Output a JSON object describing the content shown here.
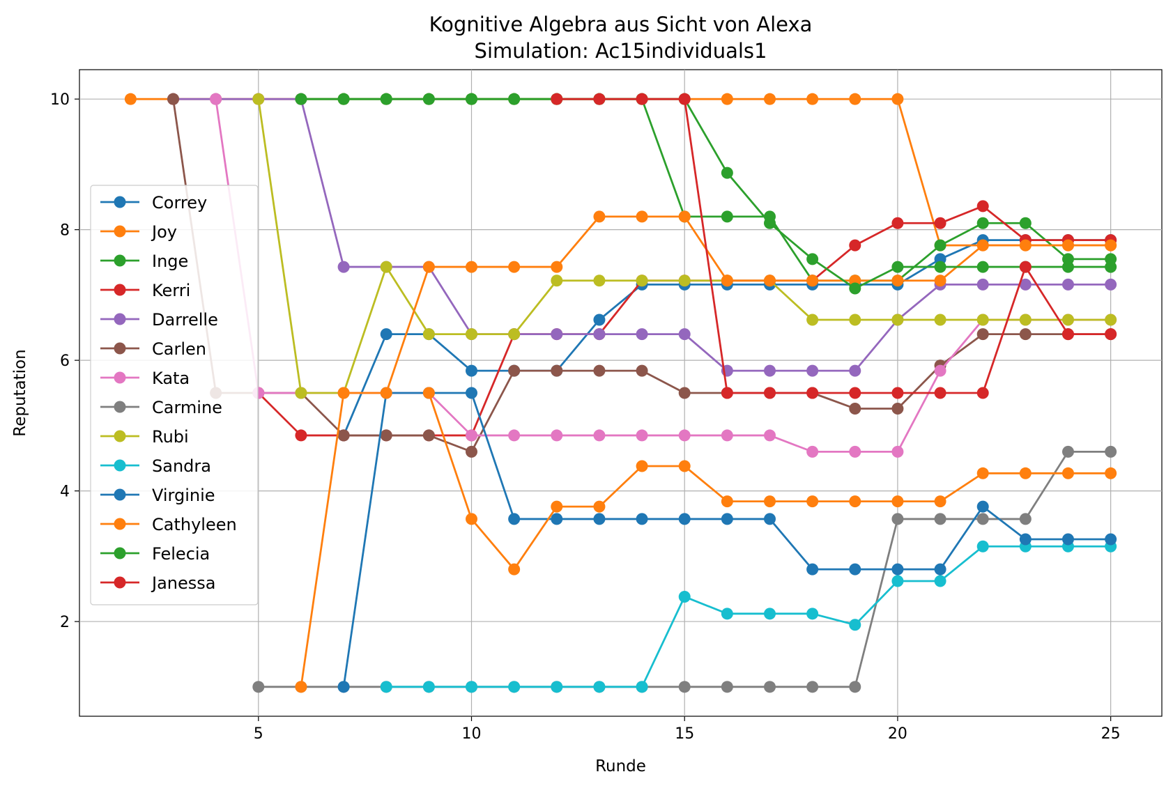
{
  "chart_data": {
    "type": "line",
    "title": "Kognitive Algebra aus Sicht von Alexa",
    "subtitle": "Simulation: Ac15individuals1",
    "xlabel": "Runde",
    "ylabel": "Reputation",
    "xlim": [
      0.8,
      26.2
    ],
    "ylim": [
      0.55,
      10.45
    ],
    "xticks": [
      5,
      10,
      15,
      20,
      25
    ],
    "yticks": [
      2,
      4,
      6,
      8,
      10
    ],
    "grid": true,
    "legend_position": "center-left",
    "series": [
      {
        "name": "Correy",
        "color": "#1f77b4",
        "x": [
          7,
          8,
          9,
          10,
          11,
          12,
          13,
          14,
          15,
          16,
          17,
          18,
          19,
          20,
          21,
          22,
          23,
          24,
          25
        ],
        "y": [
          4.85,
          6.4,
          6.4,
          5.84,
          5.84,
          5.84,
          6.62,
          7.16,
          7.16,
          7.16,
          7.16,
          7.16,
          7.16,
          7.16,
          7.55,
          7.84,
          7.84,
          7.84,
          7.84
        ]
      },
      {
        "name": "Joy",
        "color": "#ff7f0e",
        "x": [
          2,
          3,
          4,
          5,
          6,
          7,
          8,
          9,
          10,
          11,
          12,
          13,
          14,
          15,
          16,
          17,
          18,
          19,
          20,
          21,
          22,
          23,
          24,
          25
        ],
        "y": [
          10,
          10,
          10,
          10,
          10,
          10,
          10,
          10,
          10,
          10,
          10,
          10,
          10,
          10,
          10,
          10,
          10,
          10,
          10,
          7.76,
          7.76,
          7.76,
          7.76,
          7.76
        ]
      },
      {
        "name": "Inge",
        "color": "#2ca02c",
        "x": [
          6,
          7,
          8,
          9,
          10,
          11,
          12,
          13,
          14,
          15,
          16,
          17,
          18,
          19,
          20,
          21,
          22,
          23,
          24,
          25
        ],
        "y": [
          10,
          10,
          10,
          10,
          10,
          10,
          10,
          10,
          10,
          8.2,
          8.2,
          8.2,
          7.22,
          7.22,
          7.22,
          7.76,
          8.1,
          8.1,
          7.55,
          7.55
        ]
      },
      {
        "name": "Kerri",
        "color": "#d62728",
        "x": [
          5,
          6,
          7,
          8,
          9,
          10,
          11,
          12,
          13,
          14,
          15,
          16,
          17,
          18,
          19,
          20,
          21,
          22,
          23,
          24,
          25
        ],
        "y": [
          5.5,
          4.85,
          4.85,
          4.85,
          4.85,
          4.85,
          6.4,
          6.4,
          6.4,
          7.22,
          7.22,
          7.22,
          7.22,
          7.22,
          7.76,
          8.1,
          8.1,
          8.36,
          7.84,
          7.84,
          7.84
        ]
      },
      {
        "name": "Darrelle",
        "color": "#9467bd",
        "x": [
          3,
          4,
          5,
          6,
          7,
          8,
          9,
          10,
          11,
          12,
          13,
          14,
          15,
          16,
          17,
          18,
          19,
          20,
          21,
          22,
          23,
          24,
          25
        ],
        "y": [
          10,
          10,
          10,
          10,
          7.43,
          7.43,
          7.43,
          6.4,
          6.4,
          6.4,
          6.4,
          6.4,
          6.4,
          5.84,
          5.84,
          5.84,
          5.84,
          6.62,
          7.16,
          7.16,
          7.16,
          7.16,
          7.16
        ]
      },
      {
        "name": "Carlen",
        "color": "#8c564b",
        "x": [
          3,
          4,
          5,
          6,
          7,
          8,
          9,
          10,
          11,
          12,
          13,
          14,
          15,
          16,
          17,
          18,
          19,
          20,
          21,
          22,
          23,
          24,
          25
        ],
        "y": [
          10,
          5.5,
          5.5,
          5.5,
          4.85,
          4.85,
          4.85,
          4.6,
          5.84,
          5.84,
          5.84,
          5.84,
          5.5,
          5.5,
          5.5,
          5.5,
          5.26,
          5.26,
          5.92,
          6.4,
          6.4,
          6.4,
          6.4
        ]
      },
      {
        "name": "Kata",
        "color": "#e377c2",
        "x": [
          4,
          5,
          6,
          7,
          8,
          9,
          10,
          11,
          12,
          13,
          14,
          15,
          16,
          17,
          18,
          19,
          20,
          21,
          22,
          23,
          24,
          25
        ],
        "y": [
          10,
          5.5,
          5.5,
          5.5,
          5.5,
          5.5,
          4.85,
          4.85,
          4.85,
          4.85,
          4.85,
          4.85,
          4.85,
          4.85,
          4.6,
          4.6,
          4.6,
          5.84,
          6.62,
          6.62,
          6.62,
          6.62
        ]
      },
      {
        "name": "Carmine",
        "color": "#7f7f7f",
        "x": [
          5,
          6,
          7,
          8,
          9,
          10,
          11,
          12,
          13,
          14,
          15,
          16,
          17,
          18,
          19,
          20,
          21,
          22,
          23,
          24,
          25
        ],
        "y": [
          1,
          1,
          1,
          1,
          1,
          1,
          1,
          1,
          1,
          1,
          1,
          1,
          1,
          1,
          1,
          3.57,
          3.57,
          3.57,
          3.57,
          4.6,
          4.6
        ]
      },
      {
        "name": "Rubi",
        "color": "#bcbd22",
        "x": [
          5,
          6,
          7,
          8,
          9,
          10,
          11,
          12,
          13,
          14,
          15,
          16,
          17,
          18,
          19,
          20,
          21,
          22,
          23,
          24,
          25
        ],
        "y": [
          10,
          5.5,
          5.5,
          7.43,
          6.4,
          6.4,
          6.4,
          7.22,
          7.22,
          7.22,
          7.22,
          7.22,
          7.22,
          6.62,
          6.62,
          6.62,
          6.62,
          6.62,
          6.62,
          6.62,
          6.62
        ]
      },
      {
        "name": "Sandra",
        "color": "#17becf",
        "x": [
          8,
          9,
          10,
          11,
          12,
          13,
          14,
          15,
          16,
          17,
          18,
          19,
          20,
          21,
          22,
          23,
          24,
          25
        ],
        "y": [
          1,
          1,
          1,
          1,
          1,
          1,
          1,
          2.38,
          2.12,
          2.12,
          2.12,
          1.95,
          2.62,
          2.62,
          3.15,
          3.15,
          3.15,
          3.15
        ]
      },
      {
        "name": "Virginie",
        "color": "#1f77b4",
        "x": [
          7,
          8,
          9,
          10,
          11,
          12,
          13,
          14,
          15,
          16,
          17,
          18,
          19,
          20,
          21,
          22,
          23,
          24,
          25
        ],
        "y": [
          1,
          5.5,
          5.5,
          5.5,
          3.57,
          3.57,
          3.57,
          3.57,
          3.57,
          3.57,
          3.57,
          2.8,
          2.8,
          2.8,
          2.8,
          3.76,
          3.26,
          3.26,
          3.26
        ]
      },
      {
        "name": "Cathyleen",
        "color": "#ff7f0e",
        "x": [
          6,
          7,
          8,
          9,
          10,
          11,
          12,
          13,
          14,
          15,
          16,
          17,
          18,
          19,
          20,
          21,
          22,
          23,
          24,
          25
        ],
        "y": [
          1,
          5.5,
          5.5,
          7.43,
          7.43,
          7.43,
          7.43,
          8.2,
          8.2,
          8.2,
          7.22,
          7.22,
          7.22,
          7.22,
          7.22,
          7.22,
          7.76,
          7.76,
          7.76,
          7.76
        ]
      },
      {
        "name": "Felecia",
        "color": "#2ca02c",
        "x": [
          6,
          7,
          8,
          9,
          10,
          11,
          12,
          13,
          14,
          15,
          16,
          17,
          18,
          19,
          20,
          21,
          22,
          23,
          24,
          25
        ],
        "y": [
          10,
          10,
          10,
          10,
          10,
          10,
          10,
          10,
          10,
          10,
          8.87,
          8.1,
          7.55,
          7.1,
          7.43,
          7.43,
          7.43,
          7.43,
          7.43,
          7.43
        ]
      },
      {
        "name": "Janessa",
        "color": "#d62728",
        "x": [
          12,
          13,
          14,
          15,
          16,
          17,
          18,
          19,
          20,
          21,
          22,
          23,
          24,
          25
        ],
        "y": [
          10,
          10,
          10,
          10,
          5.5,
          5.5,
          5.5,
          5.5,
          5.5,
          5.5,
          5.5,
          7.43,
          6.4,
          6.4
        ]
      },
      {
        "name": "",
        "color": "#ff7f0e",
        "x": [
          9,
          10,
          11,
          12,
          13,
          14,
          15,
          16,
          17,
          18,
          19,
          20,
          21,
          22,
          23,
          24,
          25
        ],
        "y": [
          5.5,
          3.57,
          2.8,
          3.76,
          3.76,
          4.38,
          4.38,
          3.84,
          3.84,
          3.84,
          3.84,
          3.84,
          3.84,
          4.27,
          4.27,
          4.27,
          4.27
        ]
      }
    ]
  }
}
